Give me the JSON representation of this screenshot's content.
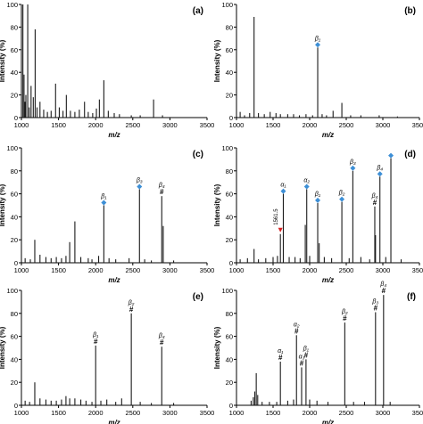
{
  "figure": {
    "x_unit_label": "m/z"
  },
  "chart_data": [
    {
      "id": "a",
      "panel_label": "(a)",
      "type": "bar",
      "xlabel": "m/z",
      "ylabel": "Intensity (%)",
      "xlim": [
        1000,
        3500
      ],
      "ylim": [
        0,
        100
      ],
      "xticks": [
        1000,
        1500,
        2000,
        2500,
        3000,
        3500
      ],
      "yticks": [
        0,
        20,
        40,
        60,
        80,
        100
      ],
      "peaks": [
        {
          "x": 1020,
          "y": 100
        },
        {
          "x": 1035,
          "y": 38
        },
        {
          "x": 1048,
          "y": 14
        },
        {
          "x": 1060,
          "y": 20
        },
        {
          "x": 1085,
          "y": 100
        },
        {
          "x": 1105,
          "y": 9
        },
        {
          "x": 1130,
          "y": 28
        },
        {
          "x": 1160,
          "y": 18
        },
        {
          "x": 1185,
          "y": 78
        },
        {
          "x": 1210,
          "y": 9
        },
        {
          "x": 1250,
          "y": 14
        },
        {
          "x": 1300,
          "y": 7
        },
        {
          "x": 1350,
          "y": 5
        },
        {
          "x": 1400,
          "y": 6
        },
        {
          "x": 1460,
          "y": 30
        },
        {
          "x": 1510,
          "y": 9
        },
        {
          "x": 1560,
          "y": 6
        },
        {
          "x": 1605,
          "y": 20
        },
        {
          "x": 1660,
          "y": 6
        },
        {
          "x": 1720,
          "y": 5
        },
        {
          "x": 1780,
          "y": 7
        },
        {
          "x": 1850,
          "y": 14
        },
        {
          "x": 1900,
          "y": 5
        },
        {
          "x": 1960,
          "y": 4
        },
        {
          "x": 2010,
          "y": 8
        },
        {
          "x": 2050,
          "y": 16
        },
        {
          "x": 2110,
          "y": 33
        },
        {
          "x": 2170,
          "y": 6
        },
        {
          "x": 2250,
          "y": 4
        },
        {
          "x": 2320,
          "y": 3
        },
        {
          "x": 2480,
          "y": 2
        },
        {
          "x": 2600,
          "y": 2
        },
        {
          "x": 2780,
          "y": 16
        },
        {
          "x": 2900,
          "y": 2
        }
      ],
      "annotations": []
    },
    {
      "id": "b",
      "panel_label": "(b)",
      "type": "bar",
      "xlabel": "m/z",
      "ylabel": "Intensity (%)",
      "xlim": [
        1000,
        3500
      ],
      "ylim": [
        0,
        100
      ],
      "xticks": [
        1000,
        1500,
        2000,
        2500,
        3000,
        3500
      ],
      "yticks": [
        0,
        20,
        40,
        60,
        80,
        100
      ],
      "peaks": [
        {
          "x": 1050,
          "y": 5
        },
        {
          "x": 1110,
          "y": 2
        },
        {
          "x": 1180,
          "y": 4
        },
        {
          "x": 1240,
          "y": 89
        },
        {
          "x": 1300,
          "y": 4
        },
        {
          "x": 1380,
          "y": 3
        },
        {
          "x": 1460,
          "y": 5
        },
        {
          "x": 1540,
          "y": 4
        },
        {
          "x": 1600,
          "y": 3
        },
        {
          "x": 1700,
          "y": 3
        },
        {
          "x": 1780,
          "y": 3
        },
        {
          "x": 1860,
          "y": 2
        },
        {
          "x": 1950,
          "y": 3
        },
        {
          "x": 2040,
          "y": 2
        },
        {
          "x": 2110,
          "y": 62
        },
        {
          "x": 2170,
          "y": 3
        },
        {
          "x": 2230,
          "y": 2
        },
        {
          "x": 2320,
          "y": 6
        },
        {
          "x": 2440,
          "y": 13
        },
        {
          "x": 2560,
          "y": 2
        },
        {
          "x": 2700,
          "y": 2
        },
        {
          "x": 2950,
          "y": 2
        },
        {
          "x": 3200,
          "y": 1
        }
      ],
      "annotations": [
        {
          "x": 2110,
          "y": 62,
          "label": "β₁",
          "marker": "diamond"
        }
      ]
    },
    {
      "id": "c",
      "panel_label": "(c)",
      "type": "bar",
      "xlabel": "m/z",
      "ylabel": "Intensity (%)",
      "xlim": [
        1000,
        3500
      ],
      "ylim": [
        0,
        100
      ],
      "xticks": [
        1000,
        1500,
        2000,
        2500,
        3000,
        3500
      ],
      "yticks": [
        0,
        20,
        40,
        60,
        80,
        100
      ],
      "peaks": [
        {
          "x": 1050,
          "y": 4
        },
        {
          "x": 1120,
          "y": 3
        },
        {
          "x": 1180,
          "y": 20
        },
        {
          "x": 1250,
          "y": 7
        },
        {
          "x": 1330,
          "y": 5
        },
        {
          "x": 1400,
          "y": 4
        },
        {
          "x": 1470,
          "y": 5
        },
        {
          "x": 1540,
          "y": 4
        },
        {
          "x": 1600,
          "y": 6
        },
        {
          "x": 1650,
          "y": 18
        },
        {
          "x": 1720,
          "y": 36
        },
        {
          "x": 1800,
          "y": 5
        },
        {
          "x": 1900,
          "y": 4
        },
        {
          "x": 1950,
          "y": 3
        },
        {
          "x": 2040,
          "y": 6
        },
        {
          "x": 2110,
          "y": 50
        },
        {
          "x": 2180,
          "y": 4
        },
        {
          "x": 2270,
          "y": 3
        },
        {
          "x": 2450,
          "y": 4
        },
        {
          "x": 2590,
          "y": 64
        },
        {
          "x": 2660,
          "y": 3
        },
        {
          "x": 2750,
          "y": 2
        },
        {
          "x": 2890,
          "y": 58
        },
        {
          "x": 2910,
          "y": 32
        },
        {
          "x": 3050,
          "y": 2
        }
      ],
      "annotations": [
        {
          "x": 2110,
          "y": 50,
          "label": "β₁",
          "marker": "diamond"
        },
        {
          "x": 2590,
          "y": 64,
          "label": "β₃",
          "marker": "diamond"
        },
        {
          "x": 2890,
          "y": 58,
          "label": "β₄",
          "marker": "hash"
        }
      ]
    },
    {
      "id": "d",
      "panel_label": "(d)",
      "type": "bar",
      "xlabel": "m/z",
      "ylabel": "Intensity (%)",
      "xlim": [
        1000,
        3500
      ],
      "ylim": [
        0,
        100
      ],
      "xticks": [
        1000,
        1500,
        2000,
        2500,
        3000,
        3500
      ],
      "yticks": [
        0,
        20,
        40,
        60,
        80,
        100
      ],
      "peaks": [
        {
          "x": 1050,
          "y": 3
        },
        {
          "x": 1150,
          "y": 4
        },
        {
          "x": 1240,
          "y": 12
        },
        {
          "x": 1300,
          "y": 3
        },
        {
          "x": 1400,
          "y": 4
        },
        {
          "x": 1500,
          "y": 5
        },
        {
          "x": 1560,
          "y": 6
        },
        {
          "x": 1600,
          "y": 25
        },
        {
          "x": 1640,
          "y": 60
        },
        {
          "x": 1720,
          "y": 5
        },
        {
          "x": 1800,
          "y": 5
        },
        {
          "x": 1870,
          "y": 4
        },
        {
          "x": 1940,
          "y": 33
        },
        {
          "x": 1960,
          "y": 64
        },
        {
          "x": 2000,
          "y": 6
        },
        {
          "x": 2110,
          "y": 52
        },
        {
          "x": 2130,
          "y": 17
        },
        {
          "x": 2200,
          "y": 5
        },
        {
          "x": 2300,
          "y": 4
        },
        {
          "x": 2440,
          "y": 53
        },
        {
          "x": 2540,
          "y": 4
        },
        {
          "x": 2590,
          "y": 80
        },
        {
          "x": 2700,
          "y": 5
        },
        {
          "x": 2820,
          "y": 3
        },
        {
          "x": 2890,
          "y": 49
        },
        {
          "x": 2900,
          "y": 24
        },
        {
          "x": 2960,
          "y": 75
        },
        {
          "x": 3040,
          "y": 5
        },
        {
          "x": 3110,
          "y": 91
        },
        {
          "x": 3250,
          "y": 3
        }
      ],
      "annotations": [
        {
          "x": 1600,
          "y": 25,
          "label": "1561.5",
          "marker": "arrow",
          "vertical_text": true
        },
        {
          "x": 1640,
          "y": 60,
          "label": "α₁",
          "marker": "diamond"
        },
        {
          "x": 1960,
          "y": 64,
          "label": "α₂",
          "marker": "diamond"
        },
        {
          "x": 2110,
          "y": 52,
          "label": "β₁",
          "marker": "diamond"
        },
        {
          "x": 2440,
          "y": 53,
          "label": "β₂",
          "marker": "diamond"
        },
        {
          "x": 2590,
          "y": 80,
          "label": "β₃",
          "marker": "diamond"
        },
        {
          "x": 2890,
          "y": 49,
          "label": "β₄",
          "marker": "hash"
        },
        {
          "x": 2960,
          "y": 75,
          "label": "β₄",
          "marker": "diamond"
        },
        {
          "x": 3110,
          "y": 91,
          "label": "",
          "marker": "diamond"
        }
      ]
    },
    {
      "id": "e",
      "panel_label": "(e)",
      "type": "bar",
      "xlabel": "m/z",
      "ylabel": "Intensity (%)",
      "xlim": [
        1000,
        3500
      ],
      "ylim": [
        0,
        100
      ],
      "xticks": [
        1000,
        1500,
        2000,
        2500,
        3000,
        3500
      ],
      "yticks": [
        0,
        20,
        40,
        60,
        80,
        100
      ],
      "peaks": [
        {
          "x": 1050,
          "y": 4
        },
        {
          "x": 1110,
          "y": 3
        },
        {
          "x": 1180,
          "y": 20
        },
        {
          "x": 1250,
          "y": 6
        },
        {
          "x": 1330,
          "y": 5
        },
        {
          "x": 1400,
          "y": 4
        },
        {
          "x": 1470,
          "y": 4
        },
        {
          "x": 1540,
          "y": 5
        },
        {
          "x": 1600,
          "y": 8
        },
        {
          "x": 1650,
          "y": 6
        },
        {
          "x": 1720,
          "y": 6
        },
        {
          "x": 1800,
          "y": 5
        },
        {
          "x": 1870,
          "y": 4
        },
        {
          "x": 1950,
          "y": 3
        },
        {
          "x": 2000,
          "y": 52
        },
        {
          "x": 2070,
          "y": 4
        },
        {
          "x": 2150,
          "y": 5
        },
        {
          "x": 2270,
          "y": 3
        },
        {
          "x": 2350,
          "y": 6
        },
        {
          "x": 2480,
          "y": 80
        },
        {
          "x": 2600,
          "y": 3
        },
        {
          "x": 2750,
          "y": 2
        },
        {
          "x": 2890,
          "y": 51
        },
        {
          "x": 3050,
          "y": 2
        }
      ],
      "annotations": [
        {
          "x": 2000,
          "y": 52,
          "label": "β₁",
          "marker": "hash"
        },
        {
          "x": 2480,
          "y": 80,
          "label": "β₂",
          "marker": "hash"
        },
        {
          "x": 2890,
          "y": 51,
          "label": "β₄",
          "marker": "hash"
        }
      ]
    },
    {
      "id": "f",
      "panel_label": "(f)",
      "type": "bar",
      "xlabel": "m/z",
      "ylabel": "Intensity (%)",
      "xlim": [
        1000,
        3500
      ],
      "ylim": [
        0,
        100
      ],
      "xticks": [
        1000,
        1500,
        2000,
        2500,
        3000,
        3500
      ],
      "yticks": [
        0,
        20,
        40,
        60,
        80,
        100
      ],
      "peaks": [
        {
          "x": 1200,
          "y": 4
        },
        {
          "x": 1230,
          "y": 7
        },
        {
          "x": 1250,
          "y": 12
        },
        {
          "x": 1270,
          "y": 28
        },
        {
          "x": 1290,
          "y": 9
        },
        {
          "x": 1350,
          "y": 3
        },
        {
          "x": 1450,
          "y": 3
        },
        {
          "x": 1550,
          "y": 3
        },
        {
          "x": 1600,
          "y": 38
        },
        {
          "x": 1700,
          "y": 4
        },
        {
          "x": 1780,
          "y": 5
        },
        {
          "x": 1820,
          "y": 61
        },
        {
          "x": 1890,
          "y": 33
        },
        {
          "x": 1950,
          "y": 40
        },
        {
          "x": 2000,
          "y": 5
        },
        {
          "x": 2100,
          "y": 4
        },
        {
          "x": 2250,
          "y": 3
        },
        {
          "x": 2480,
          "y": 72
        },
        {
          "x": 2600,
          "y": 3
        },
        {
          "x": 2750,
          "y": 3
        },
        {
          "x": 2900,
          "y": 81
        },
        {
          "x": 3010,
          "y": 96
        },
        {
          "x": 3100,
          "y": 3
        }
      ],
      "annotations": [
        {
          "x": 1600,
          "y": 38,
          "label": "α₁",
          "marker": "hash"
        },
        {
          "x": 1820,
          "y": 61,
          "label": "α₂",
          "marker": "hash"
        },
        {
          "x": 1890,
          "y": 33,
          "label": "α₃",
          "marker": "hash"
        },
        {
          "x": 1950,
          "y": 40,
          "label": "β₁",
          "marker": "hash"
        },
        {
          "x": 2480,
          "y": 72,
          "label": "β₂",
          "marker": "hash"
        },
        {
          "x": 2900,
          "y": 81,
          "label": "β₃",
          "marker": "hash"
        },
        {
          "x": 3010,
          "y": 96,
          "label": "β₄",
          "marker": "hash"
        }
      ]
    }
  ],
  "colors": {
    "axis": "#000000",
    "peak": "#1a1a1a",
    "diamond_marker": "#3d8fd6",
    "arrow_marker": "#d62020"
  }
}
